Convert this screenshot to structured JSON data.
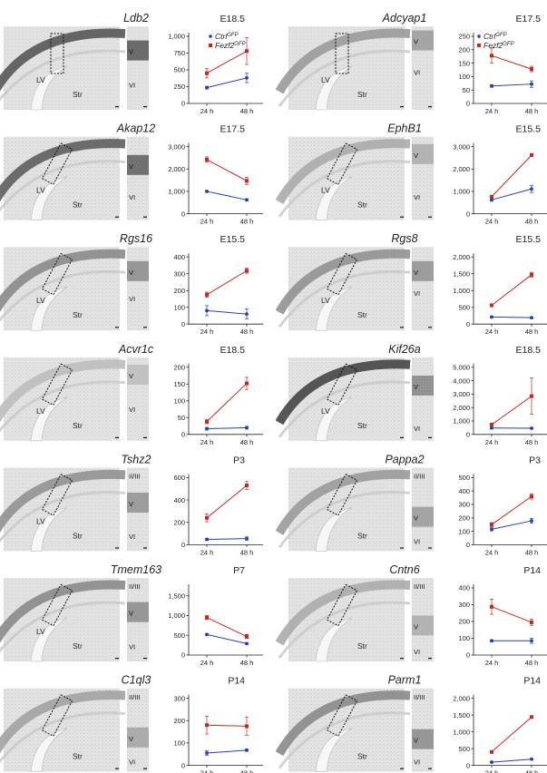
{
  "figure": {
    "series_names": {
      "ctrl": "Ctrl",
      "fezf2": "Fezf2"
    },
    "series_superscript": "GFP",
    "colors": {
      "ctrl": "#1f3fbf",
      "fezf2": "#c8281e",
      "axis": "#222222",
      "tissue_light": "#e6e6e6",
      "tissue_dark": "#555555"
    }
  },
  "chart_data": [
    {
      "type": "line",
      "gene": "Ldb2",
      "stage": "E18.5",
      "x": [
        "24 h",
        "48 h"
      ],
      "yticks": [
        "250",
        "500",
        "750",
        "1,000"
      ],
      "ylim": [
        0,
        1000
      ],
      "legend": true,
      "series": [
        {
          "name": "Ctrl",
          "values": [
            235,
            380
          ],
          "errors": [
            20,
            70
          ]
        },
        {
          "name": "Fezf2",
          "values": [
            450,
            780
          ],
          "errors": [
            70,
            200
          ]
        }
      ],
      "layers": [
        {
          "label": "V",
          "pos": 0.3
        },
        {
          "label": "VI",
          "pos": 0.7
        }
      ],
      "regions": [
        "LV",
        "Str"
      ]
    },
    {
      "type": "line",
      "gene": "Adcyap1",
      "stage": "E17.5",
      "x": [
        "24 h",
        "48 h"
      ],
      "yticks": [
        "50",
        "100",
        "150",
        "200",
        "250"
      ],
      "ylim": [
        0,
        250
      ],
      "legend": true,
      "series": [
        {
          "name": "Ctrl",
          "values": [
            65,
            72
          ],
          "errors": [
            5,
            12
          ]
        },
        {
          "name": "Fezf2",
          "values": [
            178,
            128
          ],
          "errors": [
            28,
            10
          ]
        }
      ],
      "layers": [
        {
          "label": "V",
          "pos": 0.18
        },
        {
          "label": "VI",
          "pos": 0.55
        }
      ],
      "regions": [
        "LV",
        "Str"
      ]
    },
    {
      "type": "line",
      "gene": "Akap12",
      "stage": "E17.5",
      "x": [
        "24 h",
        "48 h"
      ],
      "yticks": [
        "1,000",
        "2,000",
        "3,000"
      ],
      "ylim": [
        0,
        3000
      ],
      "legend": false,
      "series": [
        {
          "name": "Ctrl",
          "values": [
            1000,
            620
          ],
          "errors": [
            40,
            40
          ]
        },
        {
          "name": "Fezf2",
          "values": [
            2420,
            1470
          ],
          "errors": [
            120,
            160
          ]
        }
      ],
      "layers": [
        {
          "label": "V",
          "pos": 0.35
        },
        {
          "label": "VI",
          "pos": 0.72
        }
      ],
      "regions": [
        "LV",
        "Str"
      ]
    },
    {
      "type": "line",
      "gene": "EphB1",
      "stage": "E15.5",
      "x": [
        "24 h",
        "48 h"
      ],
      "yticks": [
        "1,000",
        "2,000",
        "3,000"
      ],
      "ylim": [
        0,
        3000
      ],
      "legend": false,
      "series": [
        {
          "name": "Ctrl",
          "values": [
            620,
            1110
          ],
          "errors": [
            60,
            160
          ]
        },
        {
          "name": "Fezf2",
          "values": [
            760,
            2620
          ],
          "errors": [
            60,
            40
          ]
        }
      ],
      "layers": [
        {
          "label": "V",
          "pos": 0.22
        },
        {
          "label": "VI",
          "pos": 0.72
        }
      ],
      "regions": [
        "LV",
        "Str"
      ]
    },
    {
      "type": "line",
      "gene": "Rgs16",
      "stage": "E15.5",
      "x": [
        "24 h",
        "48 h"
      ],
      "yticks": [
        "100",
        "200",
        "300",
        "400"
      ],
      "ylim": [
        0,
        400
      ],
      "legend": false,
      "series": [
        {
          "name": "Ctrl",
          "values": [
            80,
            60
          ],
          "errors": [
            30,
            30
          ]
        },
        {
          "name": "Fezf2",
          "values": [
            175,
            318
          ],
          "errors": [
            15,
            15
          ]
        }
      ],
      "layers": [
        {
          "label": "V",
          "pos": 0.3
        },
        {
          "label": "VI",
          "pos": 0.62
        }
      ],
      "regions": [
        "LV",
        "Str"
      ]
    },
    {
      "type": "line",
      "gene": "Rgs8",
      "stage": "E15.5",
      "x": [
        "24 h",
        "48 h"
      ],
      "yticks": [
        "500",
        "1,000",
        "1,500",
        "2,000"
      ],
      "ylim": [
        0,
        2000
      ],
      "legend": false,
      "series": [
        {
          "name": "Ctrl",
          "values": [
            210,
            190
          ],
          "errors": [
            20,
            20
          ]
        },
        {
          "name": "Fezf2",
          "values": [
            560,
            1470
          ],
          "errors": [
            40,
            70
          ]
        }
      ],
      "layers": [
        {
          "label": "V",
          "pos": 0.3
        },
        {
          "label": "VI",
          "pos": 0.55
        }
      ],
      "regions": [
        "LV",
        "Str"
      ]
    },
    {
      "type": "line",
      "gene": "Acvr1c",
      "stage": "E18.5",
      "x": [
        "24 h",
        "48 h"
      ],
      "yticks": [
        "50",
        "100",
        "150",
        "200"
      ],
      "ylim": [
        0,
        200
      ],
      "legend": false,
      "series": [
        {
          "name": "Ctrl",
          "values": [
            17,
            20
          ],
          "errors": [
            4,
            4
          ]
        },
        {
          "name": "Fezf2",
          "values": [
            38,
            152
          ],
          "errors": [
            6,
            18
          ]
        }
      ],
      "layers": [
        {
          "label": "V",
          "pos": 0.22
        },
        {
          "label": "VI",
          "pos": 0.62
        }
      ],
      "regions": [
        "LV",
        "Str"
      ]
    },
    {
      "type": "line",
      "gene": "Kif26a",
      "stage": "E18.5",
      "x": [
        "24 h",
        "48 h"
      ],
      "yticks": [
        "1,000",
        "2,000",
        "3,000",
        "4,000",
        "5,000"
      ],
      "ylim": [
        0,
        5000
      ],
      "legend": false,
      "series": [
        {
          "name": "Ctrl",
          "values": [
            480,
            460
          ],
          "errors": [
            40,
            40
          ]
        },
        {
          "name": "Fezf2",
          "values": [
            720,
            2850
          ],
          "errors": [
            120,
            1350
          ]
        }
      ],
      "layers": [
        {
          "label": "V",
          "pos": 0.35
        },
        {
          "label": "VI",
          "pos": 0.85
        }
      ],
      "regions": [
        "LV",
        "Str"
      ]
    },
    {
      "type": "line",
      "gene": "Tshz2",
      "stage": "P3",
      "x": [
        "24 h",
        "48 h"
      ],
      "yticks": [
        "200",
        "400",
        "600"
      ],
      "ylim": [
        0,
        600
      ],
      "legend": false,
      "series": [
        {
          "name": "Ctrl",
          "values": [
            48,
            55
          ],
          "errors": [
            10,
            15
          ]
        },
        {
          "name": "Fezf2",
          "values": [
            240,
            530
          ],
          "errors": [
            35,
            35
          ]
        }
      ],
      "layers": [
        {
          "label": "II/III",
          "pos": 0.1
        },
        {
          "label": "V",
          "pos": 0.43
        },
        {
          "label": "VI",
          "pos": 0.82
        }
      ],
      "regions": [
        "LV",
        "Str"
      ]
    },
    {
      "type": "line",
      "gene": "Pappa2",
      "stage": "P3",
      "x": [
        "24 h",
        "48 h"
      ],
      "yticks": [
        "100",
        "200",
        "300",
        "400",
        "500"
      ],
      "ylim": [
        0,
        500
      ],
      "legend": false,
      "series": [
        {
          "name": "Ctrl",
          "values": [
            115,
            178
          ],
          "errors": [
            12,
            18
          ]
        },
        {
          "name": "Fezf2",
          "values": [
            150,
            360
          ],
          "errors": [
            15,
            20
          ]
        }
      ],
      "layers": [
        {
          "label": "II/III",
          "pos": 0.1
        },
        {
          "label": "V",
          "pos": 0.6
        },
        {
          "label": "VI",
          "pos": 0.88
        }
      ],
      "regions": [
        "Str"
      ]
    },
    {
      "type": "line",
      "gene": "Tmem163",
      "stage": "P7",
      "x": [
        "24 h",
        "48 h"
      ],
      "yticks": [
        "500",
        "1,000",
        "1,500"
      ],
      "ylim": [
        0,
        1700
      ],
      "legend": false,
      "series": [
        {
          "name": "Ctrl",
          "values": [
            520,
            290
          ],
          "errors": [
            20,
            20
          ]
        },
        {
          "name": "Fezf2",
          "values": [
            950,
            470
          ],
          "errors": [
            50,
            50
          ]
        }
      ],
      "layers": [
        {
          "label": "II/III",
          "pos": 0.1
        },
        {
          "label": "V",
          "pos": 0.42
        },
        {
          "label": "VI",
          "pos": 0.82
        }
      ],
      "regions": [
        "LV",
        "Str"
      ]
    },
    {
      "type": "line",
      "gene": "Cntn6",
      "stage": "P14",
      "x": [
        "24 h",
        "48 h"
      ],
      "yticks": [
        "100",
        "200",
        "300",
        "400"
      ],
      "ylim": [
        0,
        400
      ],
      "legend": false,
      "series": [
        {
          "name": "Ctrl",
          "values": [
            85,
            85
          ],
          "errors": [
            6,
            15
          ]
        },
        {
          "name": "Fezf2",
          "values": [
            288,
            195
          ],
          "errors": [
            45,
            18
          ]
        }
      ],
      "layers": [
        {
          "label": "II/III",
          "pos": 0.1
        },
        {
          "label": "V",
          "pos": 0.58
        },
        {
          "label": "VI",
          "pos": 0.88
        }
      ],
      "regions": [
        "Str"
      ]
    },
    {
      "type": "line",
      "gene": "C1ql3",
      "stage": "P14",
      "x": [
        "24 h",
        "48 h"
      ],
      "yticks": [
        "100",
        "200",
        "300"
      ],
      "ylim": [
        0,
        300
      ],
      "legend": false,
      "series": [
        {
          "name": "Ctrl",
          "values": [
            55,
            68
          ],
          "errors": [
            10,
            5
          ]
        },
        {
          "name": "Fezf2",
          "values": [
            180,
            175
          ],
          "errors": [
            40,
            40
          ]
        }
      ],
      "layers": [
        {
          "label": "II/III",
          "pos": 0.1
        },
        {
          "label": "V",
          "pos": 0.6
        },
        {
          "label": "VI",
          "pos": 0.88
        }
      ],
      "regions": [
        "Str"
      ]
    },
    {
      "type": "line",
      "gene": "Parm1",
      "stage": "P14",
      "x": [
        "24 h",
        "48 h"
      ],
      "yticks": [
        "500",
        "1,000",
        "1,500",
        "2,000"
      ],
      "ylim": [
        0,
        2000
      ],
      "legend": false,
      "series": [
        {
          "name": "Ctrl",
          "values": [
            95,
            185
          ],
          "errors": [
            15,
            15
          ]
        },
        {
          "name": "Fezf2",
          "values": [
            400,
            1440
          ],
          "errors": [
            30,
            25
          ]
        }
      ],
      "layers": [
        {
          "label": "II/III",
          "pos": 0.1
        },
        {
          "label": "V",
          "pos": 0.62
        },
        {
          "label": "VI",
          "pos": 0.88
        }
      ],
      "regions": [
        "Str"
      ]
    }
  ]
}
